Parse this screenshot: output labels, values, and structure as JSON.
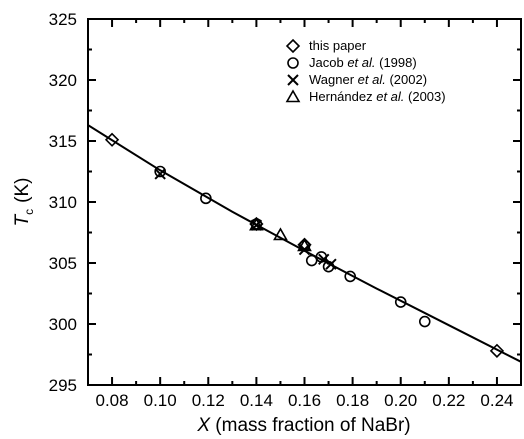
{
  "chart_data": {
    "type": "scatter",
    "xlabel": {
      "var": "X",
      "rest": " (mass fraction of NaBr)"
    },
    "ylabel": {
      "var": "T",
      "sub": "c",
      "rest": "(K)"
    },
    "xlim": [
      0.07,
      0.25
    ],
    "ylim": [
      295,
      325
    ],
    "xticks": [
      "0.08",
      "0.10",
      "0.12",
      "0.14",
      "0.16",
      "0.18",
      "0.20",
      "0.22",
      "0.24"
    ],
    "yticks": [
      "295",
      "300",
      "305",
      "310",
      "315",
      "320",
      "325"
    ],
    "grid": false,
    "legend_position": "top-right",
    "series": [
      {
        "name": "this paper",
        "marker": "diamond",
        "legend": [
          "this paper"
        ],
        "points": [
          [
            0.08,
            315.1
          ],
          [
            0.14,
            308.2
          ],
          [
            0.16,
            306.5
          ],
          [
            0.24,
            297.8
          ]
        ]
      },
      {
        "name": "Jacob et al. (1998)",
        "marker": "circle",
        "legend": [
          "Jacob ",
          "et al.",
          " (1998)"
        ],
        "points": [
          [
            0.1,
            312.5
          ],
          [
            0.119,
            310.3
          ],
          [
            0.14,
            308.2
          ],
          [
            0.16,
            306.4
          ],
          [
            0.163,
            305.2
          ],
          [
            0.167,
            305.5
          ],
          [
            0.17,
            304.7
          ],
          [
            0.179,
            303.9
          ],
          [
            0.2,
            301.8
          ],
          [
            0.21,
            300.2
          ]
        ]
      },
      {
        "name": "Wagner et al. (2002)",
        "marker": "cross",
        "legend": [
          "Wagner ",
          "et al.",
          " (2002)"
        ],
        "points": [
          [
            0.1,
            312.3
          ],
          [
            0.14,
            308.1
          ],
          [
            0.16,
            306.1
          ],
          [
            0.168,
            305.3
          ],
          [
            0.171,
            304.9
          ]
        ]
      },
      {
        "name": "Hernández et al. (2003)",
        "marker": "triangle",
        "legend": [
          "Hernández ",
          "et al.",
          " (2003)"
        ],
        "points": [
          [
            0.14,
            308.1
          ],
          [
            0.15,
            307.3
          ],
          [
            0.16,
            306.4
          ]
        ]
      }
    ],
    "fit_line": {
      "points": [
        [
          0.07,
          316.3
        ],
        [
          0.1,
          312.6
        ],
        [
          0.13,
          309.2
        ],
        [
          0.16,
          306.0
        ],
        [
          0.19,
          302.9
        ],
        [
          0.22,
          299.9
        ],
        [
          0.25,
          296.9
        ]
      ]
    }
  }
}
